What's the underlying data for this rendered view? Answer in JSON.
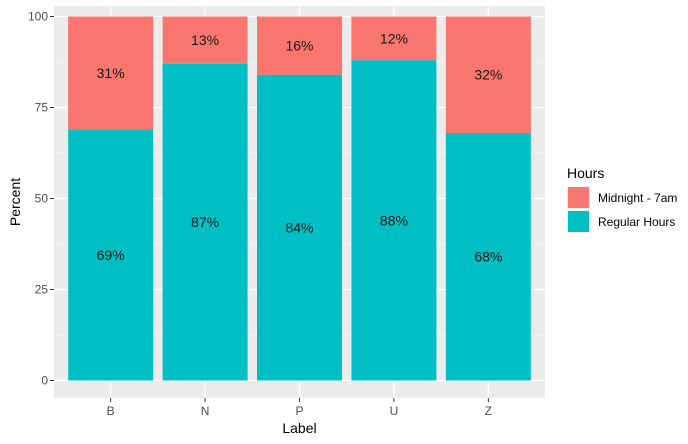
{
  "chart_data": {
    "type": "bar",
    "stacked": true,
    "categories": [
      "B",
      "N",
      "P",
      "U",
      "Z"
    ],
    "series": [
      {
        "name": "Regular Hours",
        "color": "#00BFC4",
        "values": [
          69,
          87,
          84,
          88,
          68
        ],
        "labels": [
          "69%",
          "87%",
          "84%",
          "88%",
          "68%"
        ]
      },
      {
        "name": "Midnight - 7am",
        "color": "#F8766D",
        "values": [
          31,
          13,
          16,
          12,
          32
        ],
        "labels": [
          "31%",
          "13%",
          "16%",
          "12%",
          "32%"
        ]
      }
    ],
    "xlabel": "Label",
    "ylabel": "Percent",
    "ylim": [
      0,
      100
    ],
    "yticks": [
      "0",
      "25",
      "50",
      "75",
      "100"
    ],
    "grid": true,
    "legend": {
      "title": "Hours",
      "position": "right",
      "items": [
        "Midnight - 7am",
        "Regular Hours"
      ]
    },
    "panel_color": "#EBEBEB",
    "grid_color": "#FFFFFF"
  }
}
